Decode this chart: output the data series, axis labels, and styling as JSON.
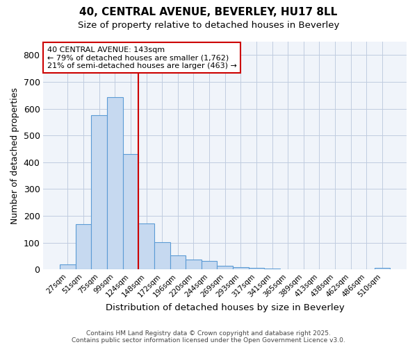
{
  "title1": "40, CENTRAL AVENUE, BEVERLEY, HU17 8LL",
  "title2": "Size of property relative to detached houses in Beverley",
  "xlabel": "Distribution of detached houses by size in Beverley",
  "ylabel": "Number of detached properties",
  "categories": [
    "27sqm",
    "51sqm",
    "75sqm",
    "99sqm",
    "124sqm",
    "148sqm",
    "172sqm",
    "196sqm",
    "220sqm",
    "244sqm",
    "269sqm",
    "293sqm",
    "317sqm",
    "341sqm",
    "365sqm",
    "389sqm",
    "413sqm",
    "438sqm",
    "462sqm",
    "486sqm",
    "510sqm"
  ],
  "values": [
    20,
    168,
    575,
    642,
    430,
    172,
    103,
    52,
    38,
    32,
    14,
    8,
    5,
    3,
    1,
    1,
    0,
    0,
    0,
    0,
    5
  ],
  "bar_color_face": "#c6d9f0",
  "bar_color_edge": "#5b9bd5",
  "vline_color": "#cc0000",
  "annotation_title": "40 CENTRAL AVENUE: 143sqm",
  "annotation_line1": "← 79% of detached houses are smaller (1,762)",
  "annotation_line2": "21% of semi-detached houses are larger (463) →",
  "annotation_box_color": "#ffffff",
  "annotation_box_edge": "#cc0000",
  "ylim": [
    0,
    850
  ],
  "yticks": [
    0,
    100,
    200,
    300,
    400,
    500,
    600,
    700,
    800
  ],
  "footer1": "Contains HM Land Registry data © Crown copyright and database right 2025.",
  "footer2": "Contains public sector information licensed under the Open Government Licence v3.0.",
  "bg_color": "#ffffff",
  "plot_bg_color": "#f0f4fa",
  "grid_color": "#c0cce0"
}
